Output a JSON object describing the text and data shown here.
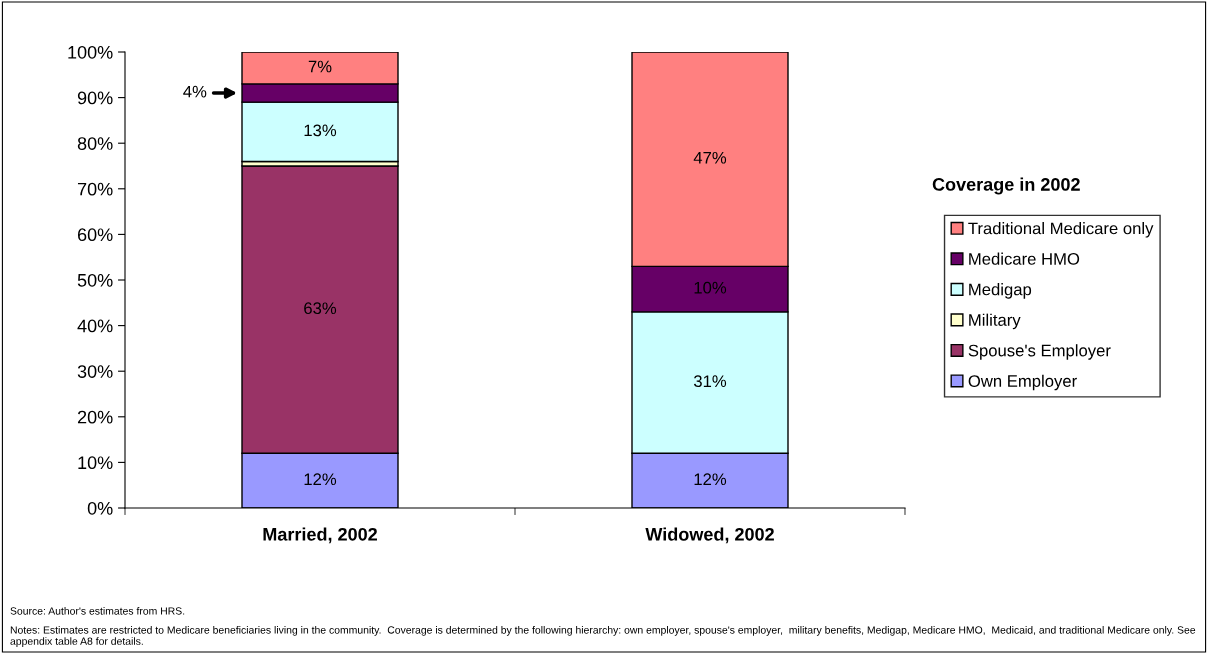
{
  "chart_data": {
    "type": "bar",
    "stacked": true,
    "categories": [
      "Married, 2002",
      "Widowed, 2002"
    ],
    "series": [
      {
        "name": "Own Employer",
        "color": "#9999ff",
        "values": [
          12,
          12
        ],
        "value_labels": [
          "12%",
          "12%"
        ]
      },
      {
        "name": "Spouse's Employer",
        "color": "#993366",
        "values": [
          63,
          0
        ],
        "value_labels": [
          "63%",
          null
        ]
      },
      {
        "name": "Military",
        "color": "#ffffcc",
        "values": [
          1,
          0
        ],
        "value_labels": [
          null,
          null
        ]
      },
      {
        "name": "Medigap",
        "color": "#ccffff",
        "values": [
          13,
          31
        ],
        "value_labels": [
          "13%",
          "31%"
        ]
      },
      {
        "name": "Medicare HMO",
        "color": "#660066",
        "values": [
          4,
          10
        ],
        "value_labels": [
          "4%",
          "10%"
        ]
      },
      {
        "name": "Traditional Medicare only",
        "color": "#ff8080",
        "values": [
          7,
          47
        ],
        "value_labels": [
          "7%",
          "47%"
        ]
      }
    ],
    "ylim": [
      0,
      100
    ],
    "yticks": [
      {
        "value": 0,
        "label": "0%"
      },
      {
        "value": 10,
        "label": "10%"
      },
      {
        "value": 20,
        "label": "20%"
      },
      {
        "value": 30,
        "label": "30%"
      },
      {
        "value": 40,
        "label": "40%"
      },
      {
        "value": 50,
        "label": "50%"
      },
      {
        "value": 60,
        "label": "60%"
      },
      {
        "value": 70,
        "label": "70%"
      },
      {
        "value": 80,
        "label": "80%"
      },
      {
        "value": 90,
        "label": "90%"
      },
      {
        "value": 100,
        "label": "100%"
      }
    ],
    "grid": false,
    "legend": "right",
    "legend_title": "Coverage in 2002",
    "annotations": [
      "Source: Author's estimates from HRS.",
      "Notes: Estimates are restricted to Medicare beneficiaries living in the community.  Coverage is determined by the following hierarchy: own employer, spouse's employer,  military benefits, Medigap, Medicare HMO,  Medicaid, and traditional Medicare only. See appendix table A8 for details."
    ]
  }
}
